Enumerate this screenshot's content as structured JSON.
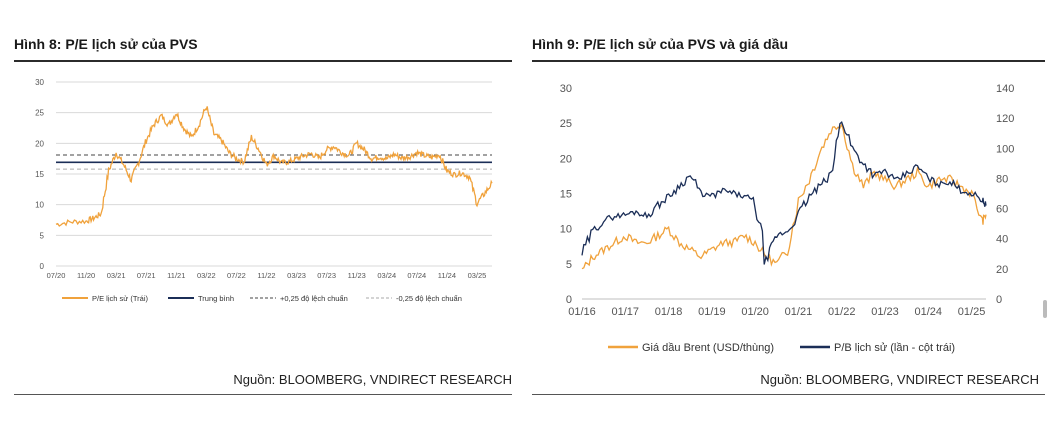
{
  "left": {
    "title": "Hình 8: P/E lịch sử của PVS",
    "source": "Nguồn: BLOOMBERG, VNDIRECT RESEARCH",
    "legend": [
      "P/E lịch sử (Trái)",
      "Trung bình",
      "+0,25 độ lệch chuẩn",
      "-0,25 độ lệch chuẩn"
    ]
  },
  "right": {
    "title": "Hình 9: P/E lịch sử của PVS và giá dầu",
    "source": "Nguồn: BLOOMBERG, VNDIRECT RESEARCH",
    "legend": [
      "Giá dầu Brent (USD/thùng)",
      "P/B lịch sử (lần - cột trái)"
    ]
  },
  "colors": {
    "orange": "#F0A23C",
    "navy": "#1B2E57",
    "dark_dash": "#444444",
    "light_dash": "#AAAAAA",
    "grid": "#D9D9D9"
  },
  "chart_data": [
    {
      "type": "line",
      "title": "Hình 8: P/E lịch sử của PVS",
      "x_ticks": [
        "07/20",
        "11/20",
        "03/21",
        "07/21",
        "11/21",
        "03/22",
        "07/22",
        "11/22",
        "03/23",
        "07/23",
        "11/23",
        "03/24",
        "07/24",
        "11/24",
        "03/25"
      ],
      "ylim": [
        0,
        30
      ],
      "y_ticks": [
        0,
        5,
        10,
        15,
        20,
        25,
        30
      ],
      "grid": true,
      "legend_position": "bottom",
      "reference_lines": [
        {
          "name": "Trung bình",
          "value": 16.9
        },
        {
          "name": "+0,25 độ lệch chuẩn",
          "value": 18.1
        },
        {
          "name": "-0,25 độ lệch chuẩn",
          "value": 15.8
        }
      ],
      "series": [
        {
          "name": "P/E lịch sử (Trái)",
          "x": [
            "07/20",
            "09/20",
            "11/20",
            "12/20",
            "01/21",
            "02/21",
            "03/21",
            "04/21",
            "05/21",
            "06/21",
            "07/21",
            "08/21",
            "09/21",
            "10/21",
            "11/21",
            "12/21",
            "01/22",
            "02/22",
            "03/22",
            "04/22",
            "05/22",
            "06/22",
            "07/22",
            "08/22",
            "09/22",
            "10/22",
            "11/22",
            "12/22",
            "01/23",
            "02/23",
            "03/23",
            "04/23",
            "05/23",
            "06/23",
            "07/23",
            "08/23",
            "09/23",
            "10/23",
            "11/23",
            "12/23",
            "01/24",
            "02/24",
            "03/24",
            "04/24",
            "05/24",
            "06/24",
            "07/24",
            "08/24",
            "09/24",
            "10/24",
            "11/24",
            "12/24",
            "01/25",
            "02/25",
            "03/25",
            "04/25",
            "05/25"
          ],
          "values": [
            6.8,
            7.2,
            7.3,
            7.8,
            8.5,
            15.5,
            18.5,
            16.5,
            14,
            17,
            20.5,
            23,
            24.5,
            23,
            25,
            22.5,
            21,
            23,
            26,
            21.5,
            20.5,
            18.5,
            17.5,
            17,
            21,
            19,
            16.5,
            18,
            16.8,
            17,
            17.5,
            18,
            18.3,
            17.6,
            19,
            19.5,
            18.5,
            18,
            20,
            19,
            17.5,
            17.8,
            17.5,
            18.2,
            17.6,
            17.8,
            18.5,
            18,
            17.7,
            18.2,
            15.5,
            14.9,
            15.2,
            14.5,
            10.2,
            11.8,
            13.5
          ]
        }
      ]
    },
    {
      "type": "line",
      "title": "Hình 9: P/E lịch sử của PVS và giá dầu",
      "x_ticks": [
        "01/16",
        "01/17",
        "01/18",
        "01/19",
        "01/20",
        "01/21",
        "01/22",
        "01/23",
        "01/24",
        "01/25"
      ],
      "ylim": [
        0,
        30
      ],
      "y2lim": [
        0,
        140
      ],
      "y_ticks": [
        0,
        5,
        10,
        15,
        20,
        25,
        30
      ],
      "y2_ticks": [
        0,
        20,
        40,
        60,
        80,
        100,
        120,
        140
      ],
      "grid": false,
      "legend_position": "bottom",
      "series": [
        {
          "name": "Giá dầu Brent (USD/thùng)",
          "axis": "left",
          "x": [
            "01/16",
            "04/16",
            "07/16",
            "10/16",
            "01/17",
            "04/17",
            "07/17",
            "10/17",
            "01/18",
            "04/18",
            "07/18",
            "10/18",
            "01/19",
            "04/19",
            "07/19",
            "10/19",
            "01/20",
            "04/20",
            "07/20",
            "10/20",
            "01/21",
            "04/21",
            "07/21",
            "10/21",
            "01/22",
            "04/22",
            "07/22",
            "10/22",
            "01/23",
            "04/23",
            "07/23",
            "10/23",
            "01/24",
            "04/24",
            "07/24",
            "10/24",
            "01/25",
            "04/25",
            "05/25"
          ],
          "values": [
            4,
            6,
            7,
            8,
            9,
            8,
            8,
            9,
            10,
            8,
            7,
            6,
            7,
            8,
            8,
            9,
            8,
            6,
            5,
            7,
            14,
            17,
            21,
            24,
            25,
            19,
            16,
            18,
            17,
            16,
            17,
            18,
            16,
            17,
            17,
            16,
            15,
            11,
            12
          ]
        },
        {
          "name": "P/B lịch sử (lần - cột trái)",
          "axis": "right",
          "x": [
            "01/16",
            "04/16",
            "07/16",
            "10/16",
            "01/17",
            "04/17",
            "07/17",
            "10/17",
            "01/18",
            "04/18",
            "07/18",
            "10/18",
            "01/19",
            "04/19",
            "07/19",
            "10/19",
            "01/20",
            "04/20",
            "07/20",
            "10/20",
            "01/21",
            "04/21",
            "07/21",
            "10/21",
            "01/22",
            "04/22",
            "07/22",
            "10/22",
            "01/23",
            "04/23",
            "07/23",
            "10/23",
            "01/24",
            "04/24",
            "07/24",
            "10/24",
            "01/25",
            "04/25",
            "05/25"
          ],
          "values": [
            30,
            45,
            52,
            55,
            56,
            58,
            55,
            62,
            68,
            75,
            82,
            70,
            68,
            72,
            70,
            68,
            65,
            24,
            42,
            45,
            56,
            68,
            75,
            82,
            120,
            100,
            90,
            82,
            85,
            78,
            83,
            88,
            80,
            76,
            78,
            72,
            70,
            66,
            62
          ]
        }
      ]
    }
  ]
}
